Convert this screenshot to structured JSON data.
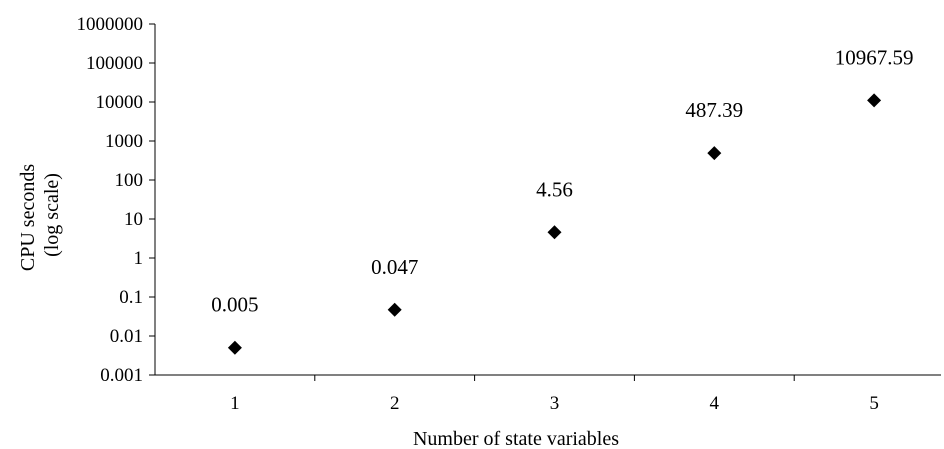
{
  "chart_data": {
    "type": "scatter",
    "xlabel": "Number of state variables",
    "ylabel_lines": [
      "CPU seconds",
      "(log scale)"
    ],
    "yscale": "log",
    "ylim": [
      0.001,
      1000000
    ],
    "xlim": [
      0.5,
      5.5
    ],
    "x_ticks": [
      "1",
      "2",
      "3",
      "4",
      "5"
    ],
    "y_ticks": [
      "0.001",
      "0.01",
      "0.1",
      "1",
      "10",
      "100",
      "1000",
      "10000",
      "100000",
      "1000000"
    ],
    "grid": false,
    "marker": "diamond",
    "marker_color": "#000000",
    "points": [
      {
        "x": 1,
        "y": 0.005,
        "label": "0.005"
      },
      {
        "x": 2,
        "y": 0.047,
        "label": "0.047"
      },
      {
        "x": 3,
        "y": 4.56,
        "label": "4.56"
      },
      {
        "x": 4,
        "y": 487.39,
        "label": "487.39"
      },
      {
        "x": 5,
        "y": 10967.59,
        "label": "10967.59"
      }
    ]
  }
}
